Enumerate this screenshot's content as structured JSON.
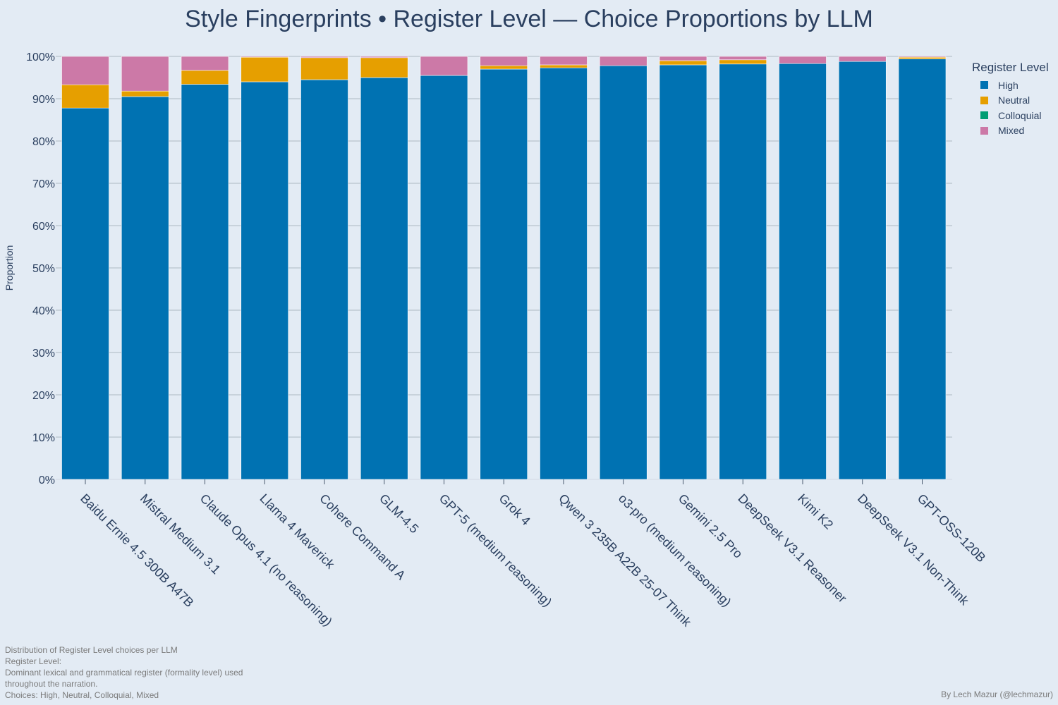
{
  "chart_data": {
    "type": "bar",
    "stacked": true,
    "title": "Style Fingerprints • Register Level — Choice Proportions by LLM",
    "ylabel": "Proportion",
    "ylim": [
      0,
      1
    ],
    "yticks": [
      "0%",
      "10%",
      "20%",
      "30%",
      "40%",
      "50%",
      "60%",
      "70%",
      "80%",
      "90%",
      "100%"
    ],
    "grid": true,
    "legend_title": "Register Level",
    "legend_position": "top-right",
    "categories": [
      "Baidu Ernie 4.5 300B A47B",
      "Mistral Medium 3.1",
      "Claude Opus 4.1 (no reasoning)",
      "Llama 4 Maverick",
      "Cohere Command A",
      "GLM-4.5",
      "GPT-5 (medium reasoning)",
      "Grok 4",
      "Qwen 3 235B A22B 25-07 Think",
      "o3-pro (medium reasoning)",
      "Gemini 2.5 Pro",
      "DeepSeek V3.1 Reasoner",
      "Kimi K2",
      "DeepSeek V3.1 Non-Think",
      "GPT-OSS-120B"
    ],
    "series": [
      {
        "name": "High",
        "color": "#0072b2",
        "values": [
          0.878,
          0.905,
          0.934,
          0.94,
          0.945,
          0.95,
          0.955,
          0.97,
          0.973,
          0.978,
          0.98,
          0.982,
          0.983,
          0.988,
          0.994
        ]
      },
      {
        "name": "Neutral",
        "color": "#e69f00",
        "values": [
          0.055,
          0.013,
          0.033,
          0.058,
          0.052,
          0.047,
          0.0,
          0.008,
          0.007,
          0.0,
          0.01,
          0.01,
          0.0,
          0.0,
          0.004
        ]
      },
      {
        "name": "Colloquial",
        "color": "#009e73",
        "values": [
          0,
          0,
          0,
          0,
          0,
          0,
          0,
          0,
          0,
          0,
          0,
          0,
          0,
          0,
          0
        ]
      },
      {
        "name": "Mixed",
        "color": "#cc79a7",
        "values": [
          0.067,
          0.082,
          0.033,
          0.002,
          0.003,
          0.003,
          0.045,
          0.022,
          0.02,
          0.022,
          0.01,
          0.008,
          0.017,
          0.012,
          0.002
        ]
      }
    ]
  },
  "footnote": [
    "Distribution of Register Level choices per LLM",
    "Register Level:",
    "Dominant lexical and grammatical register (formality level) used",
    "throughout the narration.",
    "Choices: High, Neutral, Colloquial, Mixed"
  ],
  "credit": "By Lech Mazur (@lechmazur)"
}
